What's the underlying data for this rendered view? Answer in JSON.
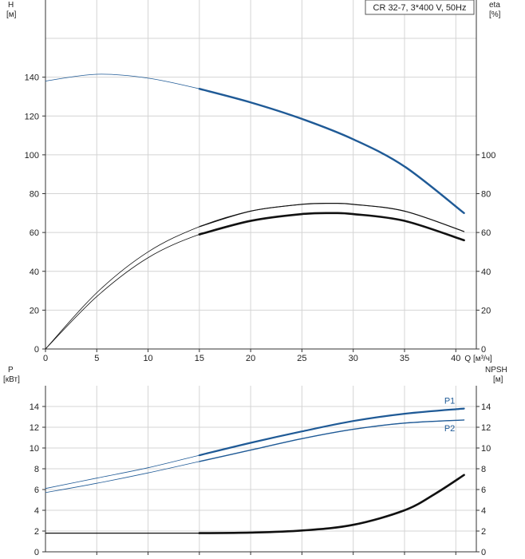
{
  "legend": "CR 32-7, 3*400 V, 50Hz",
  "colors": {
    "blue": "#1f5a96",
    "black": "#111111",
    "grid": "#d4d4d4"
  },
  "chart_data": [
    {
      "type": "line",
      "id": "head-efficiency",
      "ylabel_left": "H",
      "ylabel_left_unit": "[м]",
      "ylabel_right": "eta",
      "ylabel_right_unit": "[%]",
      "xlabel": "Q [м³/ч]",
      "xlim": [
        0,
        42
      ],
      "ylim": [
        0,
        160
      ],
      "x_ticks": [
        0,
        5,
        10,
        15,
        20,
        25,
        30,
        35,
        40
      ],
      "y_ticks_left": [
        0,
        20,
        40,
        60,
        80,
        100,
        120,
        140
      ],
      "y_ticks_right": [
        0,
        20,
        40,
        60,
        80,
        100
      ],
      "grid": true,
      "series": [
        {
          "key": "H",
          "axis": "left",
          "color": "#1f5a96",
          "operating_from": 15,
          "x": [
            0,
            5,
            10,
            15,
            20,
            25,
            30,
            35,
            40.8
          ],
          "y": [
            138,
            141.5,
            139.5,
            134,
            127,
            118.5,
            108,
            94,
            70
          ]
        },
        {
          "key": "eta-thin",
          "axis": "right",
          "color": "#111111",
          "operating_from": 15,
          "x": [
            0,
            5,
            10,
            15,
            20,
            25,
            28,
            30,
            35,
            40.8
          ],
          "y": [
            0,
            29,
            50,
            63,
            71,
            74.5,
            75,
            74.5,
            71,
            60.5
          ]
        },
        {
          "key": "eta-thick",
          "axis": "right",
          "color": "#111111",
          "operating_from": 15,
          "x": [
            0,
            5,
            10,
            15,
            20,
            25,
            28,
            30,
            35,
            40.8
          ],
          "y": [
            0,
            27,
            47,
            59,
            66,
            69.5,
            70,
            69.5,
            66,
            56
          ]
        }
      ]
    },
    {
      "type": "line",
      "id": "power-npsh",
      "ylabel_left": "P",
      "ylabel_left_unit": "[кВт]",
      "ylabel_right": "NPSH",
      "ylabel_right_unit": "[м]",
      "xlim": [
        0,
        42
      ],
      "ylim": [
        0,
        16
      ],
      "y_ticks_left": [
        0,
        2,
        4,
        6,
        8,
        10,
        12,
        14
      ],
      "y_ticks_right": [
        0,
        2,
        4,
        6,
        8,
        10,
        12,
        14
      ],
      "grid": true,
      "series": [
        {
          "name": "P1",
          "axis": "left",
          "color": "#1f5a96",
          "operating_from": 15,
          "x": [
            0,
            5,
            10,
            15,
            20,
            25,
            30,
            35,
            40.8
          ],
          "y": [
            6.1,
            7.1,
            8.1,
            9.3,
            10.5,
            11.6,
            12.6,
            13.3,
            13.8
          ]
        },
        {
          "name": "P2",
          "axis": "left",
          "color": "#1f5a96",
          "operating_from": 15,
          "x": [
            0,
            5,
            10,
            15,
            20,
            25,
            30,
            35,
            40.8
          ],
          "y": [
            5.7,
            6.6,
            7.6,
            8.7,
            9.8,
            10.9,
            11.8,
            12.4,
            12.7
          ]
        },
        {
          "key": "NPSH",
          "axis": "right",
          "color": "#111111",
          "operating_from": 15,
          "x": [
            0,
            5,
            10,
            15,
            20,
            25,
            30,
            35,
            38,
            40.8
          ],
          "y": [
            1.8,
            1.8,
            1.8,
            1.8,
            1.85,
            2.05,
            2.6,
            4.0,
            5.6,
            7.4
          ]
        }
      ]
    }
  ]
}
